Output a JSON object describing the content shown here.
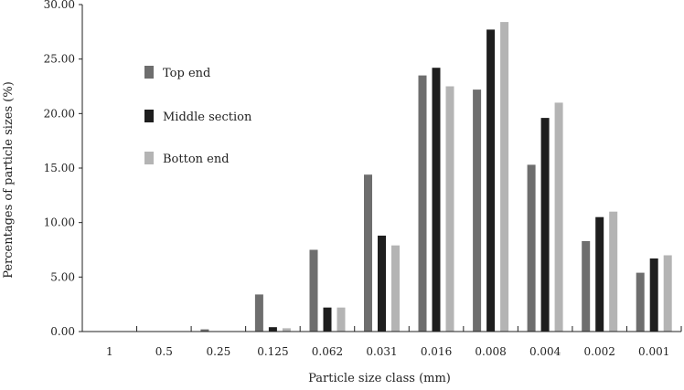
{
  "chart_data": {
    "type": "bar",
    "title": "",
    "xlabel": "Particle size class (mm)",
    "ylabel": "Percentages of particle sizes (%)",
    "ylim": [
      0,
      30
    ],
    "yticks": [
      "0.00",
      "5.00",
      "10.00",
      "15.00",
      "20.00",
      "25.00",
      "30.00"
    ],
    "grid": false,
    "legend_position": "top-left",
    "categories": [
      "1",
      "0.5",
      "0.25",
      "0.125",
      "0.062",
      "0.031",
      "0.016",
      "0.008",
      "0.004",
      "0.002",
      "0.001"
    ],
    "series": [
      {
        "name": "Top end",
        "color": "#6e6e6e",
        "values": [
          0.0,
          0.0,
          0.2,
          3.4,
          7.5,
          14.4,
          23.5,
          22.2,
          15.3,
          8.3,
          5.4
        ]
      },
      {
        "name": "Middle section",
        "color": "#1e1e1e",
        "values": [
          0.0,
          0.0,
          0.0,
          0.4,
          2.2,
          8.8,
          24.2,
          27.7,
          19.6,
          10.5,
          6.7
        ]
      },
      {
        "name": "Botton end",
        "color": "#b4b4b4",
        "values": [
          0.0,
          0.0,
          0.0,
          0.3,
          2.2,
          7.9,
          22.5,
          28.4,
          21.0,
          11.0,
          7.0
        ]
      }
    ]
  }
}
